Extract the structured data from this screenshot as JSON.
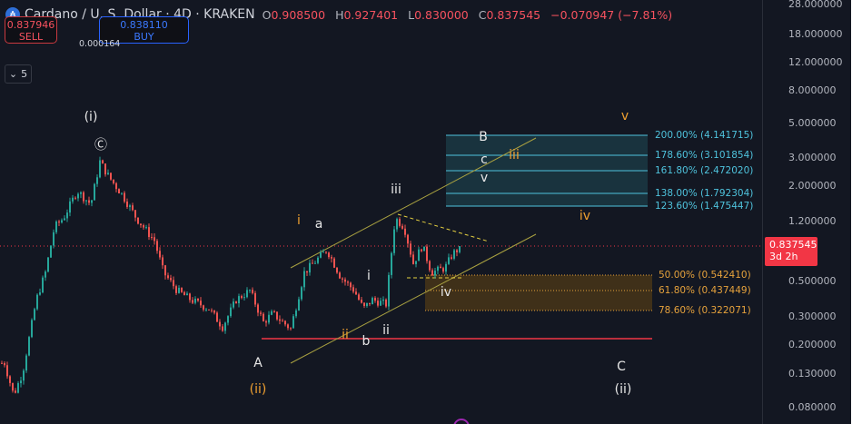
{
  "header": {
    "logo_icon": "cardano-icon",
    "symbol": "Cardano / U. S. Dollar · 4D · KRAKEN",
    "ohlc": [
      {
        "k": "O",
        "v": "0.908500"
      },
      {
        "k": "H",
        "v": "0.927401"
      },
      {
        "k": "L",
        "v": "0.830000"
      },
      {
        "k": "C",
        "v": "0.837545"
      }
    ],
    "change": "−0.070947 (−7.81%)"
  },
  "trade": {
    "sell_price": "0.837946",
    "sell_label": "SELL",
    "spread": "0.000164",
    "buy_price": "0.838110",
    "buy_label": "BUY"
  },
  "collapse": {
    "icon": "chevron-down-icon",
    "count": "5"
  },
  "price_axis": {
    "ticks": [
      "28.000000",
      "18.000000",
      "12.000000",
      "8.000000",
      "5.000000",
      "3.000000",
      "2.000000",
      "1.200000",
      "0.500000",
      "0.300000",
      "0.200000",
      "0.130000",
      "0.080000"
    ],
    "last_price": "0.837545",
    "countdown": "3d 2h"
  },
  "colors": {
    "up": "#26a69a",
    "down": "#ef5350",
    "fib_ext": "#4fc3dd",
    "fib_ret": "#e6a23c",
    "wave_orange": "#f0a030"
  },
  "fib_extension": [
    "200.00% (4.141715)",
    "178.60% (3.101854)",
    "161.80% (2.472020)",
    "138.00% (1.792304)",
    "123.60% (1.475447)"
  ],
  "fib_retracement": [
    "50.00% (0.542410)",
    "61.80% (0.437449)",
    "78.60% (0.322071)"
  ],
  "waves": {
    "w1": "(i)",
    "wc_circ": "Ⓒ",
    "A": "A",
    "ii_paren": "(ii)",
    "i_o": "i",
    "a": "a",
    "ii_o": "ii",
    "b": "b",
    "i_w": "i",
    "ii_w": "ii",
    "iii_w": "iii",
    "iv_w": "iv",
    "B": "B",
    "c": "c",
    "v_w": "v",
    "iii_o": "iii",
    "iv_o": "iv",
    "v_o": "v",
    "C": "C",
    "ii_paren2": "(ii)"
  },
  "chart_data": {
    "type": "candlestick",
    "yscale": "log",
    "ylim": [
      0.07,
      30
    ],
    "approx_closes": [
      0.153,
      0.096,
      0.134,
      0.384,
      0.571,
      1.105,
      1.261,
      1.874,
      1.537,
      2.858,
      2.282,
      1.754,
      1.261,
      0.907,
      0.571,
      0.439,
      0.384,
      0.337,
      0.259,
      0.384,
      0.439,
      0.277,
      0.315,
      0.252,
      0.571,
      0.652,
      0.795,
      0.535,
      0.439,
      0.337,
      0.384,
      0.36,
      1.261,
      1.105,
      0.652,
      0.849,
      0.571,
      0.61,
      0.744,
      0.8375
    ]
  }
}
